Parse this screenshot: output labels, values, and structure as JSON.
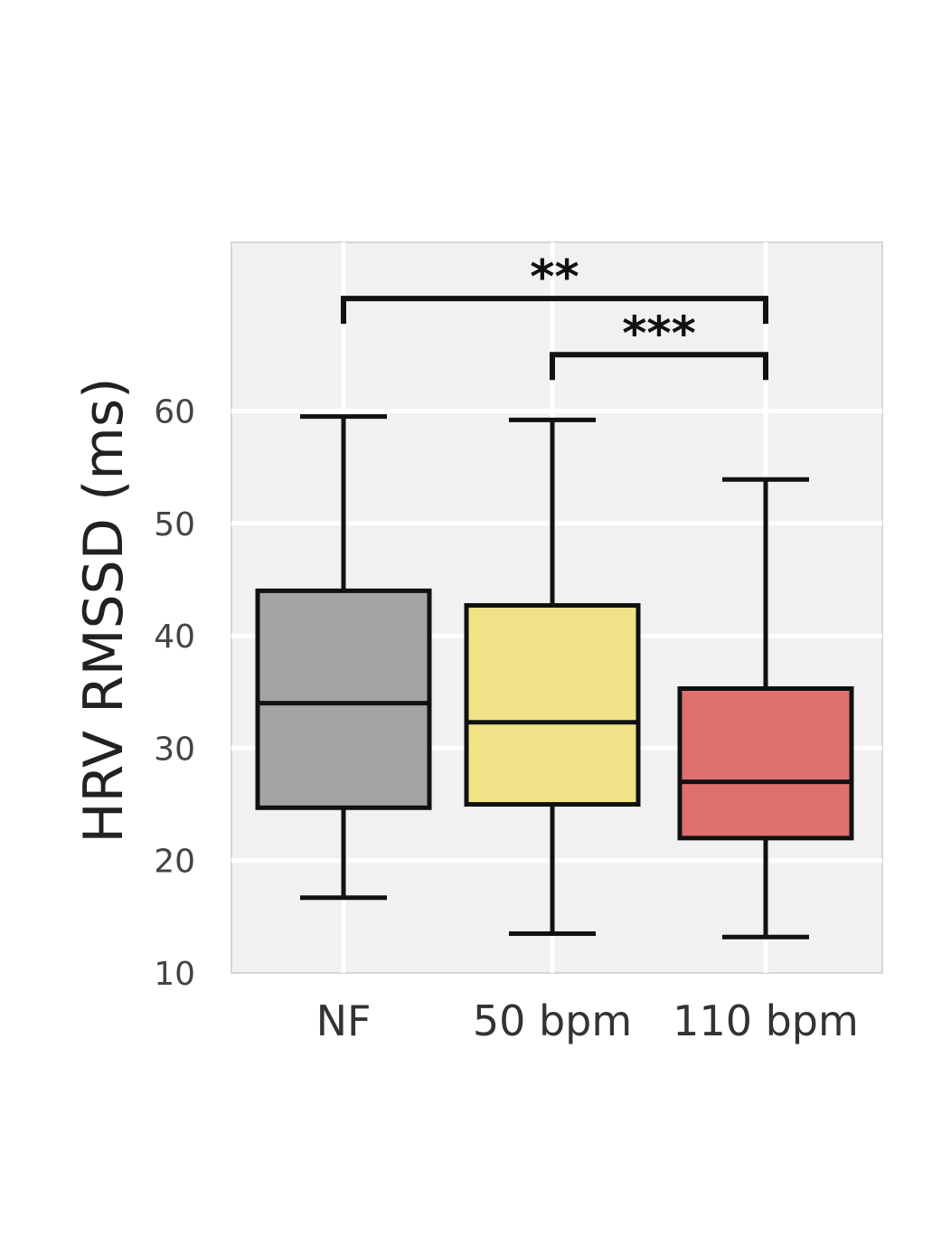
{
  "chart_data": {
    "type": "box",
    "ylabel": "HRV RMSSD (ms)",
    "xlabel": "",
    "ylim": [
      10,
      75
    ],
    "yticks": [
      10,
      20,
      30,
      40,
      50,
      60
    ],
    "grid": true,
    "categories": [
      "NF",
      "50 bpm",
      "110 bpm"
    ],
    "colors": [
      "#a3a3a3",
      "#f0e287",
      "#e07070"
    ],
    "boxes": [
      {
        "category": "NF",
        "whisker_low": 16.7,
        "q1": 24.7,
        "median": 34.0,
        "q3": 44.0,
        "whisker_high": 59.5
      },
      {
        "category": "50 bpm",
        "whisker_low": 13.5,
        "q1": 25.0,
        "median": 32.3,
        "q3": 42.7,
        "whisker_high": 59.2
      },
      {
        "category": "110 bpm",
        "whisker_low": 13.2,
        "q1": 22.0,
        "median": 27.0,
        "q3": 35.3,
        "whisker_high": 53.9
      }
    ],
    "significance": [
      {
        "from": "NF",
        "to": "110 bpm",
        "label": "**",
        "y": 70.0
      },
      {
        "from": "50 bpm",
        "to": "110 bpm",
        "label": "***",
        "y": 65.0
      }
    ]
  }
}
